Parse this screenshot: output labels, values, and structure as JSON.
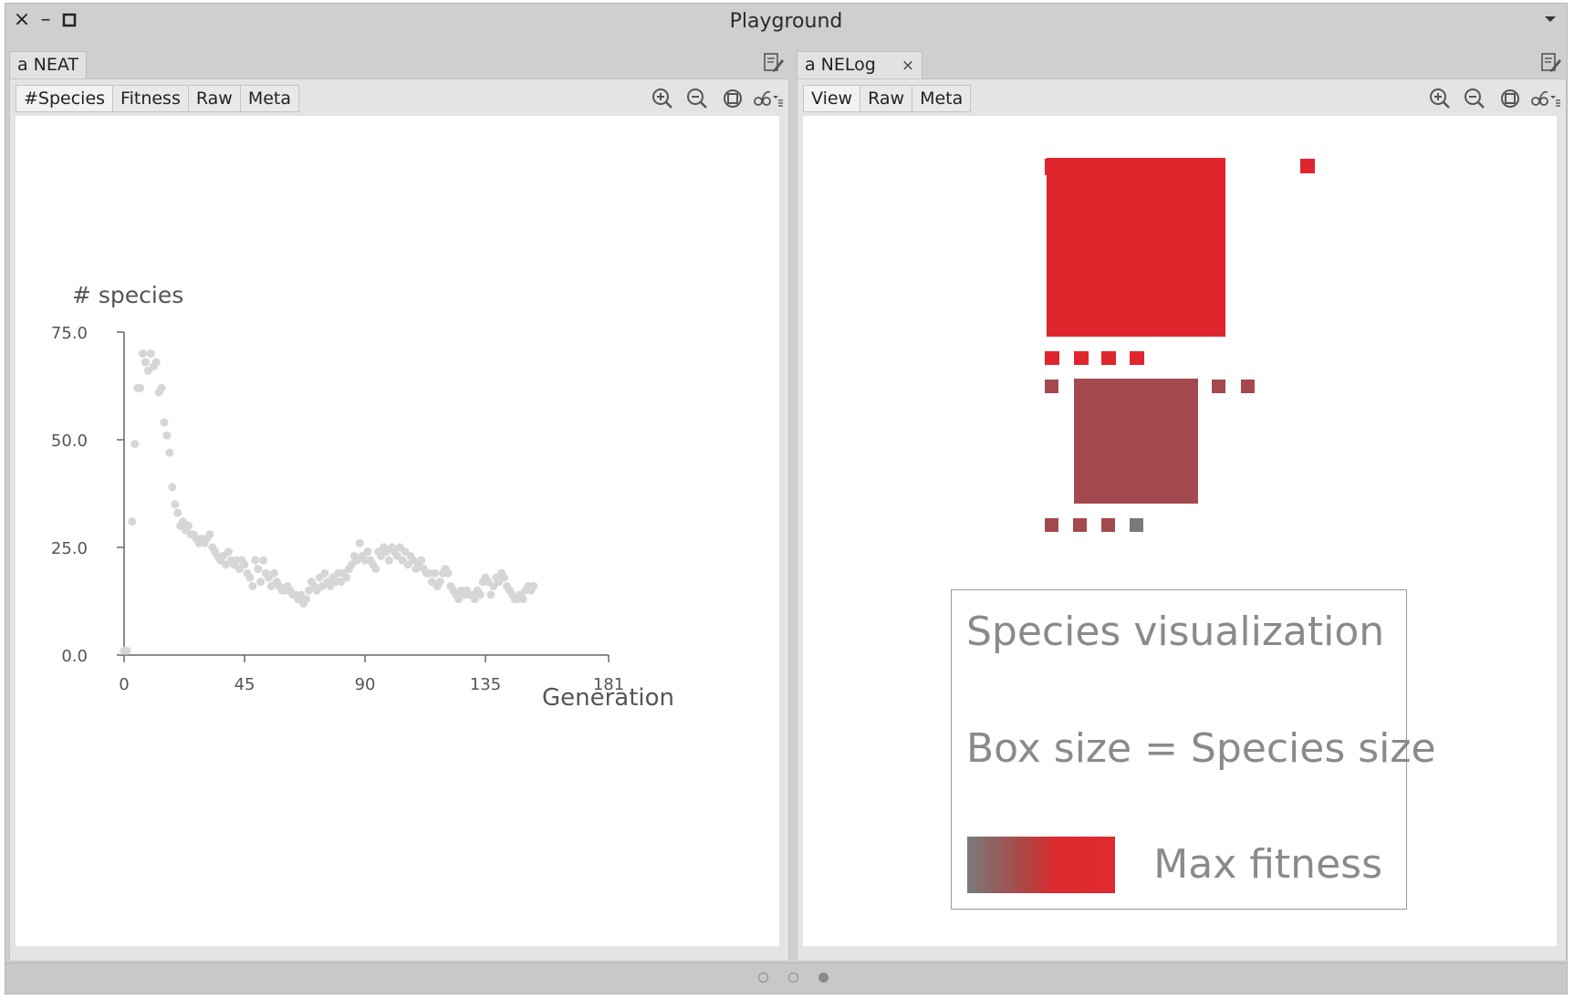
{
  "window": {
    "title": "Playground",
    "controls": {
      "close": "×",
      "minimize": "–",
      "maximize": "□"
    }
  },
  "left_pane": {
    "tab_label": "a NEAT",
    "subtabs": [
      "#Species",
      "Fitness",
      "Raw",
      "Meta"
    ],
    "active_subtab": "#Species"
  },
  "right_pane": {
    "tab_label": "a NELog",
    "tab_close": "×",
    "subtabs": [
      "View",
      "Raw",
      "Meta"
    ],
    "active_subtab": "View"
  },
  "toolbar_icons": [
    "zoom-in-icon",
    "zoom-out-icon",
    "zoom-fit-icon",
    "glasses-menu-icon"
  ],
  "chart_data": {
    "type": "scatter",
    "title": "",
    "ylabel": "# species",
    "xlabel": "Generation",
    "xlim": [
      0,
      181
    ],
    "ylim": [
      0,
      75
    ],
    "xticks": [
      "0",
      "45",
      "90",
      "135",
      "181"
    ],
    "yticks": [
      "0.0",
      "25.0",
      "50.0",
      "75.0"
    ],
    "point_color": "#d6d6d6",
    "points": [
      [
        0,
        1
      ],
      [
        1,
        1
      ],
      [
        3,
        31
      ],
      [
        4,
        49
      ],
      [
        5,
        62
      ],
      [
        6,
        62
      ],
      [
        7,
        70
      ],
      [
        8,
        68
      ],
      [
        9,
        66
      ],
      [
        10,
        70
      ],
      [
        11,
        67
      ],
      [
        12,
        68
      ],
      [
        13,
        61
      ],
      [
        14,
        62
      ],
      [
        15,
        54
      ],
      [
        16,
        51
      ],
      [
        17,
        47
      ],
      [
        18,
        39
      ],
      [
        19,
        35
      ],
      [
        20,
        33
      ],
      [
        21,
        30
      ],
      [
        22,
        31
      ],
      [
        23,
        29
      ],
      [
        24,
        30
      ],
      [
        25,
        28
      ],
      [
        26,
        28
      ],
      [
        27,
        27
      ],
      [
        28,
        26
      ],
      [
        29,
        27
      ],
      [
        30,
        26
      ],
      [
        31,
        27
      ],
      [
        32,
        28
      ],
      [
        33,
        25
      ],
      [
        34,
        24
      ],
      [
        35,
        23
      ],
      [
        36,
        22
      ],
      [
        37,
        23
      ],
      [
        38,
        21
      ],
      [
        39,
        24
      ],
      [
        40,
        22
      ],
      [
        41,
        21
      ],
      [
        42,
        22
      ],
      [
        43,
        20
      ],
      [
        44,
        22
      ],
      [
        45,
        21
      ],
      [
        46,
        19
      ],
      [
        47,
        18
      ],
      [
        48,
        16
      ],
      [
        49,
        22
      ],
      [
        50,
        20
      ],
      [
        51,
        17
      ],
      [
        52,
        22
      ],
      [
        53,
        19
      ],
      [
        54,
        18
      ],
      [
        55,
        16
      ],
      [
        56,
        19
      ],
      [
        57,
        17
      ],
      [
        58,
        16
      ],
      [
        59,
        15
      ],
      [
        60,
        15
      ],
      [
        61,
        16
      ],
      [
        62,
        15
      ],
      [
        63,
        14
      ],
      [
        64,
        14
      ],
      [
        65,
        13
      ],
      [
        66,
        14
      ],
      [
        67,
        12
      ],
      [
        68,
        13
      ],
      [
        69,
        15
      ],
      [
        70,
        17
      ],
      [
        71,
        16
      ],
      [
        72,
        15
      ],
      [
        73,
        18
      ],
      [
        74,
        16
      ],
      [
        75,
        19
      ],
      [
        76,
        17
      ],
      [
        77,
        16
      ],
      [
        78,
        18
      ],
      [
        79,
        17
      ],
      [
        80,
        19
      ],
      [
        81,
        17
      ],
      [
        82,
        19
      ],
      [
        83,
        18
      ],
      [
        84,
        20
      ],
      [
        85,
        21
      ],
      [
        86,
        23
      ],
      [
        87,
        22
      ],
      [
        88,
        26
      ],
      [
        89,
        23
      ],
      [
        90,
        22
      ],
      [
        91,
        24
      ],
      [
        92,
        22
      ],
      [
        93,
        21
      ],
      [
        94,
        20
      ],
      [
        95,
        24
      ],
      [
        96,
        23
      ],
      [
        97,
        25
      ],
      [
        98,
        24
      ],
      [
        99,
        22
      ],
      [
        100,
        25
      ],
      [
        101,
        24
      ],
      [
        102,
        23
      ],
      [
        103,
        25
      ],
      [
        104,
        22
      ],
      [
        105,
        24
      ],
      [
        106,
        21
      ],
      [
        107,
        23
      ],
      [
        108,
        22
      ],
      [
        109,
        20
      ],
      [
        110,
        21
      ],
      [
        111,
        22
      ],
      [
        112,
        20
      ],
      [
        113,
        19
      ],
      [
        114,
        19
      ],
      [
        115,
        17
      ],
      [
        116,
        19
      ],
      [
        117,
        16
      ],
      [
        118,
        17
      ],
      [
        119,
        19
      ],
      [
        120,
        20
      ],
      [
        121,
        19
      ],
      [
        122,
        16
      ],
      [
        123,
        15
      ],
      [
        124,
        14
      ],
      [
        125,
        13
      ],
      [
        126,
        15
      ],
      [
        127,
        14
      ],
      [
        128,
        15
      ],
      [
        129,
        14
      ],
      [
        130,
        14
      ],
      [
        131,
        13
      ],
      [
        132,
        15
      ],
      [
        133,
        14
      ],
      [
        134,
        17
      ],
      [
        135,
        18
      ],
      [
        136,
        17
      ],
      [
        137,
        14
      ],
      [
        138,
        16
      ],
      [
        139,
        18
      ],
      [
        140,
        17
      ],
      [
        141,
        19
      ],
      [
        142,
        18
      ],
      [
        143,
        16
      ],
      [
        144,
        15
      ],
      [
        145,
        14
      ],
      [
        146,
        13
      ],
      [
        147,
        13
      ],
      [
        148,
        14
      ],
      [
        149,
        13
      ],
      [
        150,
        15
      ],
      [
        151,
        16
      ],
      [
        152,
        15
      ],
      [
        153,
        16
      ]
    ]
  },
  "species_viz": {
    "max_fitness_color": "#e0262d",
    "low_fitness_color": "#a34a4e",
    "min_fitness_color": "#7c7878"
  },
  "legend": {
    "title": "Species visualization",
    "size_label": "Box size = Species size",
    "fitness_label": "Max fitness"
  },
  "pager": {
    "pages": 3,
    "active": 3
  }
}
